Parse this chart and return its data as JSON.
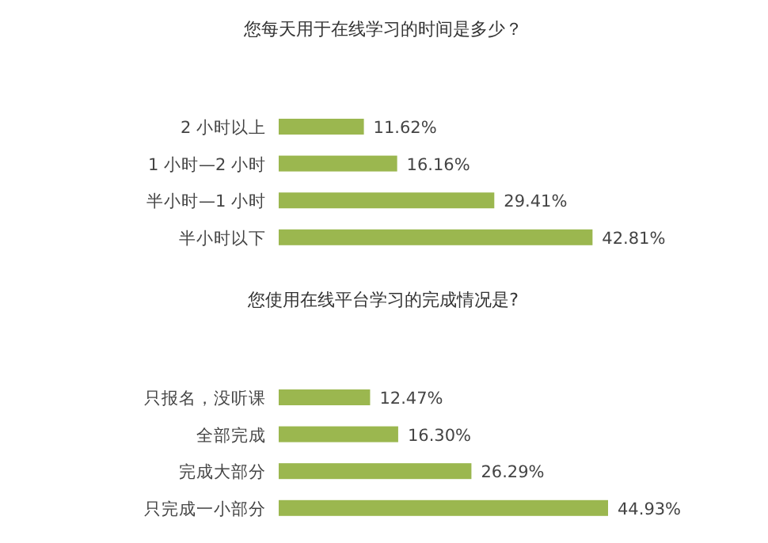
{
  "chart_data": [
    {
      "type": "bar",
      "orientation": "horizontal",
      "title": "您每天用于在线学习的时间是多少？",
      "categories": [
        "2 小时以上",
        "1 小时—2 小时",
        "半小时—1 小时",
        "半小时以下"
      ],
      "values": [
        11.62,
        16.16,
        29.41,
        42.81
      ],
      "value_labels": [
        "11.62%",
        "16.16%",
        "29.41%",
        "42.81%"
      ],
      "color": "#9bb74f"
    },
    {
      "type": "bar",
      "orientation": "horizontal",
      "title": "您使用在线平台学习的完成情况是?",
      "categories": [
        "只报名，没听课",
        "全部完成",
        "完成大部分",
        "只完成一小部分"
      ],
      "values": [
        12.47,
        16.3,
        26.29,
        44.93
      ],
      "value_labels": [
        "12.47%",
        "16.30%",
        "26.29%",
        "44.93%"
      ],
      "color": "#9bb74f"
    }
  ]
}
